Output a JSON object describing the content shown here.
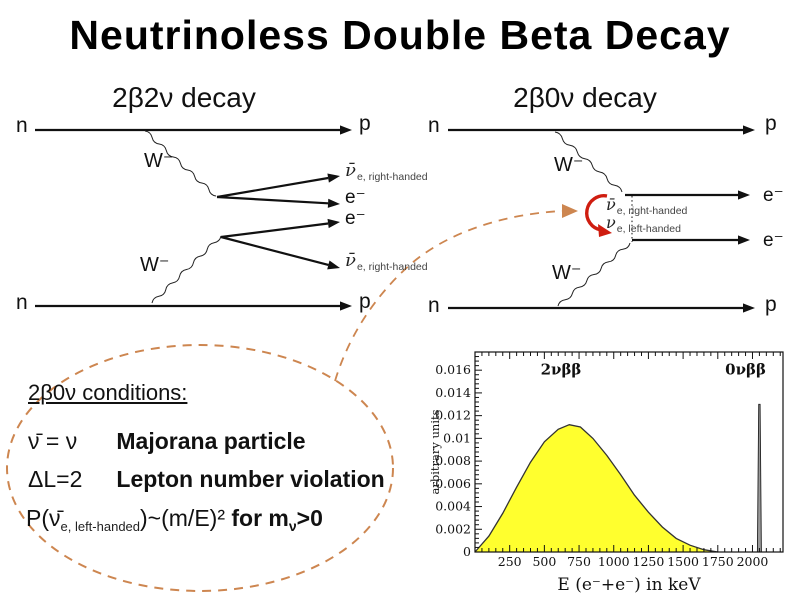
{
  "title": "Neutrinoless Double Beta Decay",
  "left_diagram": {
    "heading": "2β2ν decay",
    "n_top": "n",
    "p_top": "p",
    "n_bottom": "n",
    "p_bottom": "p",
    "w_top": "W⁻",
    "w_bottom": "W⁻",
    "out1_nu": "ν̄",
    "out1_sub": "e, right-handed",
    "out2": "e⁻",
    "out3": "e⁻",
    "out4_nu": "ν̄",
    "out4_sub": "e, right-handed"
  },
  "right_diagram": {
    "heading": "2β0ν decay",
    "n_top": "n",
    "p_top": "p",
    "n_bottom": "n",
    "p_bottom": "p",
    "w_top": "W⁻",
    "w_bottom": "W⁻",
    "e_top": "e⁻",
    "e_bottom": "e⁻",
    "nu_bar": "ν̄",
    "nu_bar_sub": "e, right-handed",
    "nu": "ν",
    "nu_sub": "e, left-handed"
  },
  "conditions": {
    "heading": "2β0ν conditions:",
    "rows": [
      {
        "math": "ν̄ = ν",
        "desc": "Majorana particle"
      },
      {
        "math": "ΔL=2",
        "desc": "Lepton number violation"
      }
    ],
    "prob": {
      "open": "P(",
      "nu": "ν̄",
      "sub": "e, left-handed",
      "mid": ")~(m/E)²",
      "bold1": " for m",
      "bold_sub": "ν",
      "bold2": ">0"
    }
  },
  "chart_data": {
    "type": "area",
    "title": "",
    "xlabel": "E (e⁻+e⁻) in keV",
    "ylabel": "arbitrary units",
    "xlim": [
      0,
      2220
    ],
    "ylim": [
      0,
      0.0176
    ],
    "x_ticks": [
      250,
      500,
      750,
      1000,
      1250,
      1500,
      1750,
      2000
    ],
    "x_minor_step": 50,
    "y_ticks": [
      0,
      0.002,
      0.004,
      0.006,
      0.008,
      0.01,
      0.012,
      0.014,
      0.016
    ],
    "y_minor_step": 0.0004,
    "grid": false,
    "legend": "none",
    "series": [
      {
        "name": "2νββ",
        "type": "area",
        "fill": "#ffff2e",
        "stroke": "#333333",
        "points": [
          [
            0,
            0
          ],
          [
            100,
            0.0014
          ],
          [
            200,
            0.0034
          ],
          [
            300,
            0.0057
          ],
          [
            400,
            0.0079
          ],
          [
            500,
            0.0097
          ],
          [
            600,
            0.0108
          ],
          [
            680,
            0.0112
          ],
          [
            760,
            0.011
          ],
          [
            850,
            0.01
          ],
          [
            950,
            0.0085
          ],
          [
            1050,
            0.0068
          ],
          [
            1150,
            0.005
          ],
          [
            1250,
            0.0035
          ],
          [
            1350,
            0.0022
          ],
          [
            1450,
            0.0012
          ],
          [
            1550,
            0.0006
          ],
          [
            1650,
            0.0002
          ],
          [
            1750,
            0
          ]
        ]
      },
      {
        "name": "0νββ",
        "type": "spike",
        "x": 2050,
        "height": 0.013,
        "fill": "#999999",
        "stroke": "#222222"
      }
    ],
    "annotations": [
      {
        "text": "2νββ",
        "x": 620,
        "y": 0.0156
      },
      {
        "text": "0νββ",
        "x": 1950,
        "y": 0.0156
      }
    ]
  }
}
